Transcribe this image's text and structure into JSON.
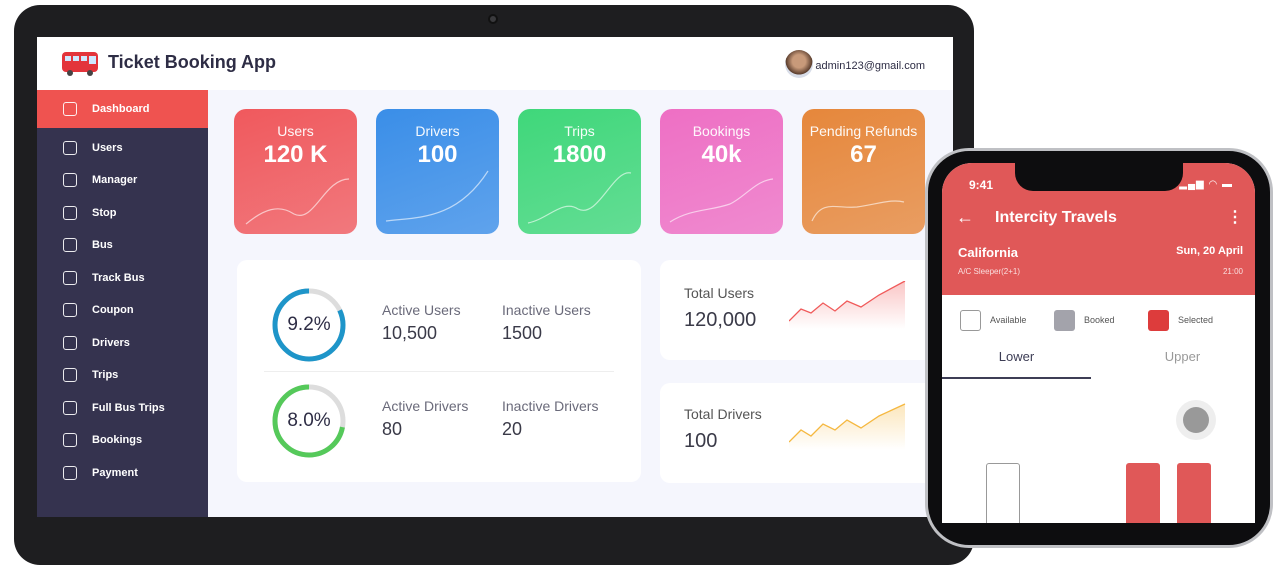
{
  "app": {
    "title": "Ticket Booking App",
    "user_email": "admin123@gmail.com"
  },
  "sidebar": {
    "items": [
      {
        "label": "Dashboard",
        "icon": "speedometer-icon",
        "active": true
      },
      {
        "label": "Users",
        "icon": "users-icon"
      },
      {
        "label": "Manager",
        "icon": "gear-icon"
      },
      {
        "label": "Stop",
        "icon": "bus-stop-icon"
      },
      {
        "label": "Bus",
        "icon": "bus-icon"
      },
      {
        "label": "Track Bus",
        "icon": "track-icon"
      },
      {
        "label": "Coupon",
        "icon": "coupon-icon"
      },
      {
        "label": "Drivers",
        "icon": "driver-icon"
      },
      {
        "label": "Trips",
        "icon": "trips-icon"
      },
      {
        "label": "Full Bus Trips",
        "icon": "full-bus-icon"
      },
      {
        "label": "Bookings",
        "icon": "bookings-icon"
      },
      {
        "label": "Payment",
        "icon": "payment-icon"
      }
    ]
  },
  "cards": [
    {
      "label": "Users",
      "value": "120 K",
      "color": "#f0595d"
    },
    {
      "label": "Drivers",
      "value": "100",
      "color": "#3a8ee8"
    },
    {
      "label": "Trips",
      "value": "1800",
      "color": "#3fd77a"
    },
    {
      "label": "Bookings",
      "value": "40k",
      "color": "#ee6fc4"
    },
    {
      "label": "Pending Refunds",
      "value": "67",
      "color": "#e6873b"
    }
  ],
  "stats": {
    "users": {
      "percent": "9.2%",
      "fraction": 0.82,
      "active_label": "Active Users",
      "active_value": "10,500",
      "inactive_label": "Inactive Users",
      "inactive_value": "1500",
      "color": "#1e95c9"
    },
    "drivers": {
      "percent": "8.0%",
      "fraction": 0.72,
      "active_label": "Active Drivers",
      "active_value": "80",
      "inactive_label": "Inactive Drivers",
      "inactive_value": "20",
      "color": "#55c95a"
    }
  },
  "totals": [
    {
      "label": "Total Users",
      "value": "120,000",
      "color": "#f05a5a"
    },
    {
      "label": "Total Drivers",
      "value": "100",
      "color": "#f5b840"
    }
  ],
  "phone": {
    "time": "9:41",
    "title": "Intercity Travels",
    "city": "California",
    "bus_type": "A/C Sleeper(2+1)",
    "date": "Sun, 20 April",
    "depart": "21:00",
    "legend": [
      {
        "label": "Available"
      },
      {
        "label": "Booked"
      },
      {
        "label": "Selected"
      }
    ],
    "tabs": [
      {
        "label": "Lower",
        "active": true
      },
      {
        "label": "Upper"
      }
    ]
  }
}
